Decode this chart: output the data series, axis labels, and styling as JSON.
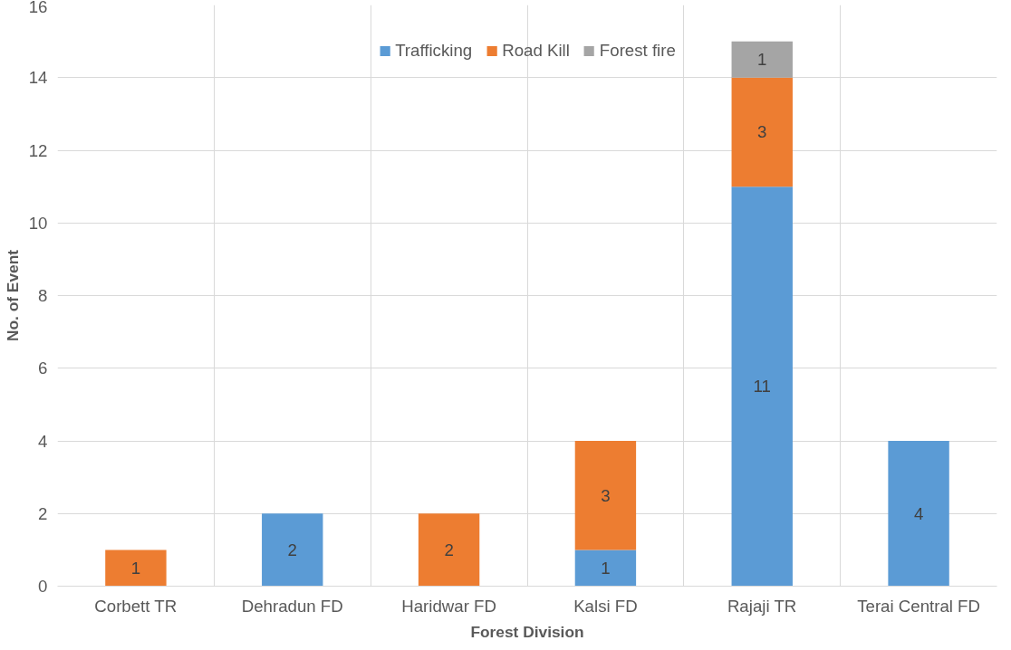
{
  "chart_data": {
    "type": "bar",
    "stacked": true,
    "xlabel": "Forest Division",
    "ylabel": "No. of Event",
    "categories": [
      "Corbett TR",
      "Dehradun FD",
      "Haridwar FD",
      "Kalsi FD",
      "Rajaji TR",
      "Terai Central FD"
    ],
    "series": [
      {
        "name": "Trafficking",
        "color": "#5b9bd5",
        "values": [
          null,
          2,
          null,
          1,
          11,
          4
        ]
      },
      {
        "name": "Road Kill",
        "color": "#ed7d31",
        "values": [
          1,
          null,
          2,
          3,
          3,
          null
        ]
      },
      {
        "name": "Forest fire",
        "color": "#a5a5a5",
        "values": [
          null,
          null,
          null,
          null,
          1,
          null
        ]
      }
    ],
    "ylim": [
      0,
      16
    ],
    "yticks": [
      0,
      2,
      4,
      6,
      8,
      10,
      12,
      14,
      16
    ],
    "grid": true,
    "legend": "top",
    "data_labels": true
  }
}
